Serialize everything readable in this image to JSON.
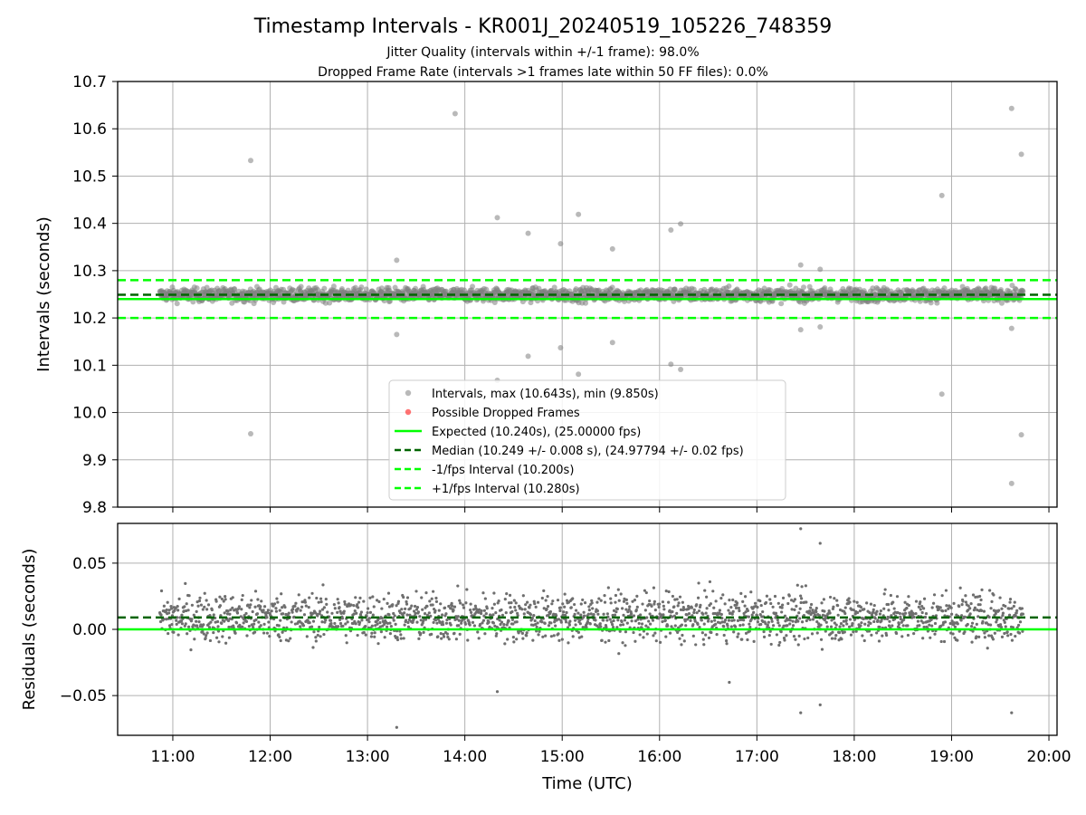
{
  "title": "Timestamp Intervals - KR001J_20240519_105226_748359",
  "subtitle_lines": [
    "Jitter Quality (intervals within +/-1 frame): 98.0%",
    "Dropped Frame Rate (intervals >1 frames late within 50 FF files): 0.0%"
  ],
  "colors": {
    "intervals": "#808080",
    "dropped": "#ff0000",
    "expected": "#00ff00",
    "median": "#006400",
    "grid": "#b0b0b0"
  },
  "chart_data": [
    {
      "type": "scatter",
      "panel": "top",
      "ylabel": "Intervals (seconds)",
      "xlim": [
        "10:26",
        "20:05"
      ],
      "ylim": [
        9.8,
        10.7
      ],
      "yticks": [
        "9.8",
        "9.9",
        "10.0",
        "10.1",
        "10.2",
        "10.3",
        "10.4",
        "10.5",
        "10.6",
        "10.7"
      ],
      "grid": true,
      "legend_position": "lower-center",
      "expected_interval": 10.24,
      "median_interval": 10.249,
      "minus_one_frame_interval": 10.2,
      "plus_one_frame_interval": 10.28,
      "typical_band": {
        "start": "10:52",
        "end": "19:44",
        "min": 10.21,
        "max": 10.29
      },
      "outliers": [
        {
          "x": "11:48",
          "y": 10.533
        },
        {
          "x": "11:48",
          "y": 9.955
        },
        {
          "x": "13:18",
          "y": 10.322
        },
        {
          "x": "13:18",
          "y": 10.165
        },
        {
          "x": "13:54",
          "y": 10.632
        },
        {
          "x": "14:20",
          "y": 10.412
        },
        {
          "x": "14:20",
          "y": 10.068
        },
        {
          "x": "14:39",
          "y": 10.379
        },
        {
          "x": "14:39",
          "y": 10.119
        },
        {
          "x": "14:59",
          "y": 10.357
        },
        {
          "x": "14:59",
          "y": 10.137
        },
        {
          "x": "15:10",
          "y": 10.419
        },
        {
          "x": "15:10",
          "y": 10.081
        },
        {
          "x": "15:31",
          "y": 10.346
        },
        {
          "x": "15:31",
          "y": 10.148
        },
        {
          "x": "16:07",
          "y": 10.386
        },
        {
          "x": "16:07",
          "y": 10.102
        },
        {
          "x": "16:13",
          "y": 10.399
        },
        {
          "x": "16:13",
          "y": 10.091
        },
        {
          "x": "17:27",
          "y": 10.312
        },
        {
          "x": "17:27",
          "y": 10.175
        },
        {
          "x": "17:39",
          "y": 10.303
        },
        {
          "x": "17:39",
          "y": 10.181
        },
        {
          "x": "18:54",
          "y": 10.459
        },
        {
          "x": "18:54",
          "y": 10.039
        },
        {
          "x": "19:37",
          "y": 10.643
        },
        {
          "x": "19:37",
          "y": 9.85
        },
        {
          "x": "19:37",
          "y": 10.178
        },
        {
          "x": "19:43",
          "y": 10.546
        },
        {
          "x": "19:43",
          "y": 9.953
        }
      ],
      "legend": [
        "Intervals, max (10.643s), min (9.850s)",
        "Possible Dropped Frames",
        "Expected (10.240s), (25.00000 fps)",
        "Median (10.249 +/- 0.008 s), (24.97794 +/- 0.02 fps)",
        "-1/fps Interval (10.200s)",
        "+1/fps Interval (10.280s)"
      ]
    },
    {
      "type": "scatter",
      "panel": "bottom",
      "xlabel": "Time (UTC)",
      "ylabel": "Residuals (seconds)",
      "xlim": [
        "10:26",
        "20:05"
      ],
      "ylim": [
        -0.08,
        0.08
      ],
      "xticks": [
        "11:00",
        "12:00",
        "13:00",
        "14:00",
        "15:00",
        "16:00",
        "17:00",
        "18:00",
        "19:00",
        "20:00"
      ],
      "yticks": [
        "−0.05",
        "0.00",
        "0.05"
      ],
      "grid": true,
      "zero_line": 0.0,
      "median_residual": 0.009,
      "typical_band": {
        "start": "10:52",
        "end": "19:44",
        "min": -0.035,
        "max": 0.05
      },
      "outliers": [
        {
          "x": "13:18",
          "y": -0.074
        },
        {
          "x": "17:27",
          "y": 0.076
        },
        {
          "x": "17:39",
          "y": 0.065
        },
        {
          "x": "17:27",
          "y": -0.063
        },
        {
          "x": "17:39",
          "y": -0.057
        },
        {
          "x": "19:37",
          "y": -0.063
        },
        {
          "x": "14:20",
          "y": -0.047
        },
        {
          "x": "16:43",
          "y": -0.04
        }
      ]
    }
  ]
}
